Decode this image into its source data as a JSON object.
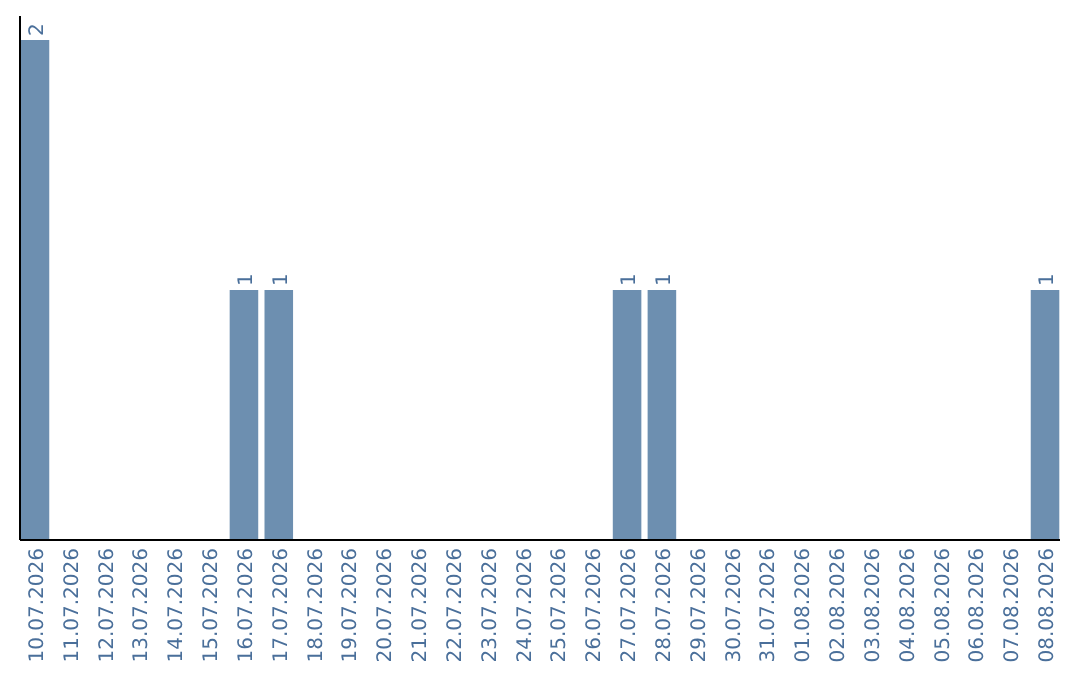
{
  "chart_data": {
    "type": "bar",
    "categories": [
      "10.07.2026",
      "11.07.2026",
      "12.07.2026",
      "13.07.2026",
      "14.07.2026",
      "15.07.2026",
      "16.07.2026",
      "17.07.2026",
      "18.07.2026",
      "19.07.2026",
      "20.07.2026",
      "21.07.2026",
      "22.07.2026",
      "23.07.2026",
      "24.07.2026",
      "25.07.2026",
      "26.07.2026",
      "27.07.2026",
      "28.07.2026",
      "29.07.2026",
      "30.07.2026",
      "31.07.2026",
      "01.08.2026",
      "02.08.2026",
      "03.08.2026",
      "04.08.2026",
      "05.08.2026",
      "06.08.2026",
      "07.08.2026",
      "08.08.2026"
    ],
    "values": [
      2,
      0,
      0,
      0,
      0,
      0,
      1,
      1,
      0,
      0,
      0,
      0,
      0,
      0,
      0,
      0,
      0,
      1,
      1,
      0,
      0,
      0,
      0,
      0,
      0,
      0,
      0,
      0,
      0,
      1
    ],
    "value_labels": [
      "2",
      null,
      null,
      null,
      null,
      null,
      "1",
      "1",
      null,
      null,
      null,
      null,
      null,
      null,
      null,
      null,
      null,
      "1",
      "1",
      null,
      null,
      null,
      null,
      null,
      null,
      null,
      null,
      null,
      null,
      "1"
    ],
    "color": "#6d8fb0"
  }
}
